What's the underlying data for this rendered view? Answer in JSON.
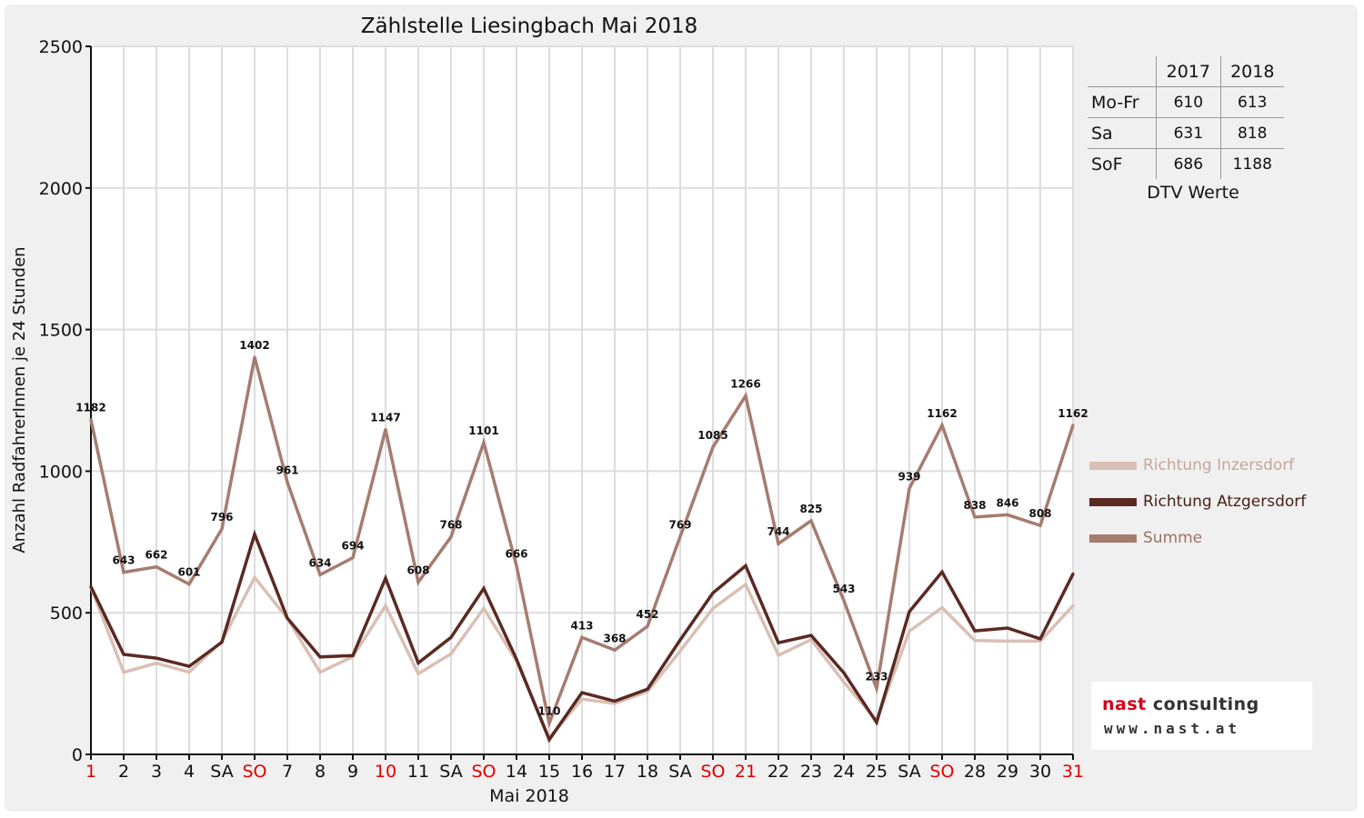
{
  "chart_data": {
    "type": "line",
    "title": "Zählstelle Liesingbach Mai 2018",
    "xlabel": "Mai 2018",
    "ylabel": "Anzahl RadfahrerInnen je 24 Stunden",
    "ylim": [
      0,
      2500
    ],
    "yticks": [
      0,
      500,
      1000,
      1500,
      2000,
      2500
    ],
    "grid": true,
    "legend_position": "right",
    "categories": [
      "1",
      "2",
      "3",
      "4",
      "SA",
      "SO",
      "7",
      "8",
      "9",
      "10",
      "11",
      "SA",
      "SO",
      "14",
      "15",
      "16",
      "17",
      "18",
      "SA",
      "SO",
      "21",
      "22",
      "23",
      "24",
      "25",
      "SA",
      "SO",
      "28",
      "29",
      "30",
      "31"
    ],
    "red_categories": [
      0,
      5,
      9,
      12,
      19,
      20,
      26,
      30
    ],
    "series": [
      {
        "name": "Richtung Inzersdorf",
        "color": "#d9bfb4",
        "values": [
          590,
          290,
          322,
          290,
          400,
          625,
          480,
          290,
          345,
          525,
          285,
          355,
          515,
          330,
          58,
          195,
          180,
          222,
          365,
          515,
          600,
          350,
          405,
          255,
          120,
          435,
          518,
          402,
          400,
          400,
          525
        ]
      },
      {
        "name": "Richtung Atzgersdorf",
        "color": "#5a2a22",
        "values": [
          592,
          353,
          340,
          311,
          396,
          777,
          481,
          344,
          349,
          622,
          323,
          413,
          586,
          336,
          52,
          218,
          188,
          230,
          404,
          570,
          666,
          394,
          420,
          288,
          113,
          504,
          644,
          436,
          446,
          408,
          637
        ]
      },
      {
        "name": "Summe",
        "color": "#a67c70",
        "values": [
          1182,
          643,
          662,
          601,
          796,
          1402,
          961,
          634,
          694,
          1147,
          608,
          768,
          1101,
          666,
          110,
          413,
          368,
          452,
          769,
          1085,
          1266,
          744,
          825,
          543,
          233,
          939,
          1162,
          838,
          846,
          808,
          1162
        ]
      }
    ],
    "data_labels": [
      "1182",
      "643",
      "662",
      "601",
      "796",
      "1402",
      "961",
      "634",
      "694",
      "1147",
      "608",
      "768",
      "1101",
      "666",
      "110",
      "413",
      "368",
      "452",
      "769",
      "1085",
      "1266",
      "744",
      "825",
      "543",
      "233",
      "939",
      "1162",
      "838",
      "846",
      "808",
      "1162"
    ]
  },
  "dtv": {
    "header": [
      "2017",
      "2018"
    ],
    "rows": [
      {
        "label": "Mo-Fr",
        "v2017": "610",
        "v2018": "613"
      },
      {
        "label": "Sa",
        "v2017": "631",
        "v2018": "818"
      },
      {
        "label": "SoF",
        "v2017": "686",
        "v2018": "1188"
      }
    ],
    "caption": "DTV Werte"
  },
  "logo": {
    "line1_a": "nast",
    "line1_b": "consulting",
    "line2": "www.nast.at",
    "color_accent": "#d0021b",
    "color_text": "#333333"
  }
}
